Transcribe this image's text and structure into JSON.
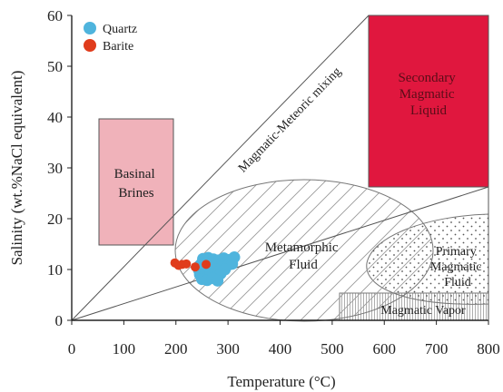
{
  "chart_data": {
    "type": "scatter",
    "xlabel": "Temperature (°C)",
    "ylabel": "Salinity (wt.%NaCl equivalent)",
    "xlim": [
      0,
      800
    ],
    "ylim": [
      0,
      60
    ],
    "x_ticks": [
      "0",
      "100",
      "200",
      "300",
      "400",
      "500",
      "600",
      "700",
      "800"
    ],
    "y_ticks": [
      "0",
      "10",
      "20",
      "30",
      "40",
      "50",
      "60"
    ],
    "grid": false,
    "legend_position": "top-left",
    "colors": {
      "quartz": "#4fb4dd",
      "barite": "#e03c1c",
      "secondary_magmatic": "#e0173e",
      "basinal": "#f0b2ba"
    },
    "series": [
      {
        "name": "Quartz",
        "marker": "circle",
        "points": [
          [
            252,
            12.1
          ],
          [
            262,
            12.3
          ],
          [
            272,
            12.0
          ],
          [
            282,
            11.8
          ],
          [
            292,
            12.2
          ],
          [
            302,
            11.9
          ],
          [
            312,
            12.4
          ],
          [
            248,
            11.0
          ],
          [
            258,
            10.9
          ],
          [
            268,
            11.2
          ],
          [
            278,
            10.8
          ],
          [
            288,
            11.0
          ],
          [
            298,
            10.7
          ],
          [
            308,
            11.1
          ],
          [
            244,
            9.9
          ],
          [
            254,
            10.2
          ],
          [
            264,
            9.8
          ],
          [
            274,
            10.1
          ],
          [
            284,
            9.7
          ],
          [
            294,
            10.0
          ],
          [
            246,
            9.0
          ],
          [
            256,
            8.8
          ],
          [
            266,
            9.1
          ],
          [
            276,
            8.6
          ],
          [
            286,
            9.2
          ],
          [
            250,
            8.1
          ],
          [
            260,
            7.9
          ],
          [
            270,
            8.3
          ],
          [
            280,
            7.8
          ]
        ]
      },
      {
        "name": "Barite",
        "marker": "circle",
        "points": [
          [
            198,
            11.3
          ],
          [
            205,
            10.8
          ],
          [
            212,
            11.0
          ],
          [
            220,
            11.1
          ],
          [
            237,
            10.5
          ],
          [
            258,
            11.0
          ]
        ]
      }
    ],
    "regions": [
      {
        "label_lines": [
          "Basinal",
          "Brines"
        ]
      },
      {
        "label_lines": [
          "Secondary",
          "Magmatic",
          "Liquid"
        ]
      },
      {
        "label_lines": [
          "Metamorphic",
          "Fluid"
        ]
      },
      {
        "label_lines": [
          "Primary",
          "Magmatic",
          "Fluid"
        ]
      },
      {
        "label_lines": [
          "Magmatic Vapor"
        ]
      },
      {
        "label_lines": [
          "Magmatic-Meteoric mixing"
        ]
      }
    ]
  }
}
